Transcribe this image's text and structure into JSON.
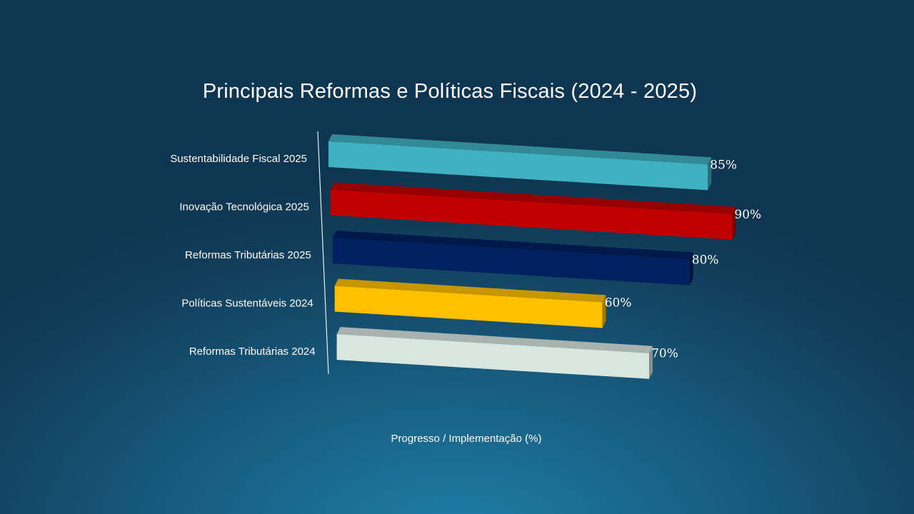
{
  "chart_data": {
    "type": "bar",
    "orientation": "horizontal",
    "style": "3d",
    "title": "Principais Reformas e Políticas Fiscais (2024 - 2025)",
    "xlabel": "Progresso / Implementação (%)",
    "ylabel": "",
    "xlim": [
      0,
      100
    ],
    "grid": false,
    "legend": "none",
    "categories": [
      "Sustentabilidade Fiscal 2025",
      "Inovação Tecnológica 2025",
      "Reformas Tributárias 2025",
      "Políticas Sustentáveis 2024",
      "Reformas Tributárias 2024"
    ],
    "values": [
      85,
      90,
      80,
      60,
      70
    ],
    "value_labels": [
      "85%",
      "90%",
      "80%",
      "60%",
      "70%"
    ],
    "colors": [
      "#3fb1c0",
      "#c00000",
      "#002060",
      "#ffc000",
      "#d8e6e0"
    ]
  }
}
